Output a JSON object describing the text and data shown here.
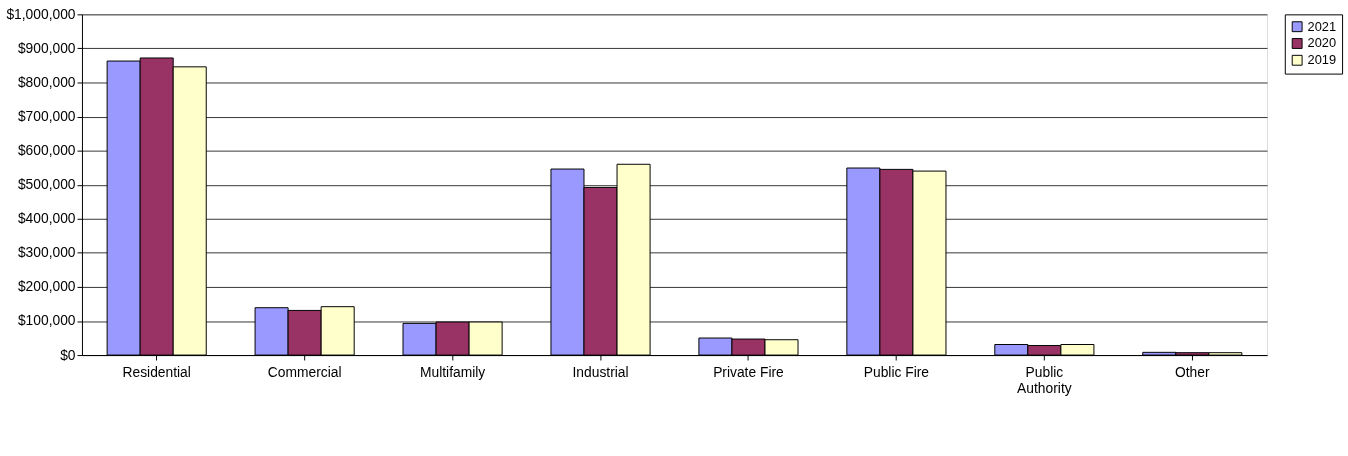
{
  "chart_data": {
    "type": "bar",
    "categories": [
      "Residential",
      "Commercial",
      "Multifamily",
      "Industrial",
      "Private Fire",
      "Public Fire",
      "Public\nAuthority",
      "Other"
    ],
    "series": [
      {
        "name": "2021",
        "color": "#9999ff",
        "values": [
          863000,
          139000,
          93000,
          546000,
          50000,
          549000,
          31000,
          8000
        ]
      },
      {
        "name": "2020",
        "color": "#993366",
        "values": [
          872000,
          131000,
          97000,
          492000,
          47000,
          545000,
          28000,
          7000
        ]
      },
      {
        "name": "2019",
        "color": "#ffffcc",
        "values": [
          846000,
          142000,
          97000,
          560000,
          45000,
          540000,
          31000,
          7000
        ]
      }
    ],
    "ylim": [
      0,
      1000000
    ],
    "yticks": [
      {
        "value": 0,
        "label": "$0"
      },
      {
        "value": 100000,
        "label": "$100,000"
      },
      {
        "value": 200000,
        "label": "$200,000"
      },
      {
        "value": 300000,
        "label": "$300,000"
      },
      {
        "value": 400000,
        "label": "$400,000"
      },
      {
        "value": 500000,
        "label": "$500,000"
      },
      {
        "value": 600000,
        "label": "$600,000"
      },
      {
        "value": 700000,
        "label": "$700,000"
      },
      {
        "value": 800000,
        "label": "$800,000"
      },
      {
        "value": 900000,
        "label": "$900,000"
      },
      {
        "value": 1000000,
        "label": "$1,000,000"
      }
    ],
    "grid": "y",
    "legend": "right"
  }
}
